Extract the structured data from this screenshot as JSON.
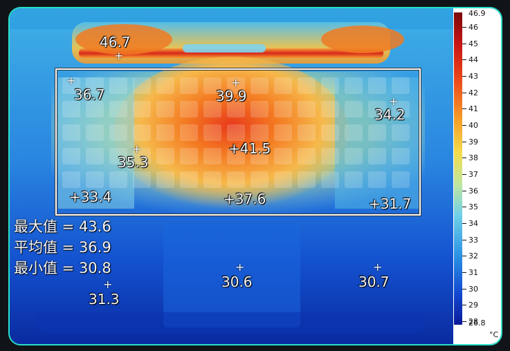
{
  "hotspots": [
    {
      "label": "46.7"
    },
    {
      "label": "36.7"
    },
    {
      "label": "39.9"
    },
    {
      "label": "34.2"
    },
    {
      "label": "35.3"
    },
    {
      "label": "+41.5"
    },
    {
      "label": "+33.4"
    },
    {
      "label": "+37.6"
    },
    {
      "label": "+31.7"
    },
    {
      "label": "31.3"
    },
    {
      "label": "30.6"
    },
    {
      "label": "30.7"
    }
  ],
  "stats": {
    "max": "最大值 = 43.6",
    "avg": "平均值 = 36.9",
    "min": "最小值 = 30.8"
  },
  "scale": {
    "max": "46.9",
    "min": "26.8",
    "unit": "°C",
    "ticks": [
      "46",
      "45",
      "44",
      "43",
      "42",
      "41",
      "40",
      "39",
      "38",
      "37",
      "36",
      "35",
      "34",
      "33",
      "32",
      "31",
      "30",
      "29",
      "28"
    ]
  },
  "colors": {
    "hot": "#c81414",
    "warm": "#f07a1a",
    "mid": "#f4d24a",
    "cool": "#66c6e0",
    "cold": "#0a2a9a",
    "frame": "#27e0c8"
  }
}
